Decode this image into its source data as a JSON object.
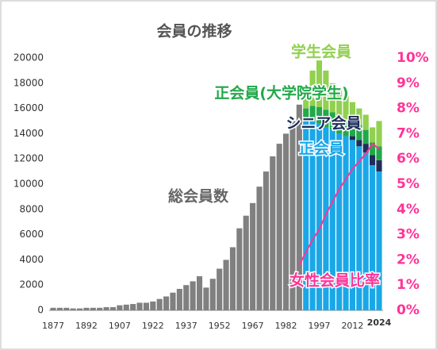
{
  "chart_data": {
    "type": "bar",
    "title": "会員の推移",
    "x": [
      1877,
      1880,
      1883,
      1886,
      1889,
      1892,
      1895,
      1898,
      1901,
      1904,
      1907,
      1910,
      1913,
      1916,
      1919,
      1922,
      1925,
      1928,
      1931,
      1934,
      1937,
      1940,
      1943,
      1946,
      1949,
      1952,
      1955,
      1958,
      1961,
      1964,
      1967,
      1970,
      1973,
      1976,
      1979,
      1982,
      1985,
      1988,
      1991,
      1994,
      1997,
      2000,
      2003,
      2006,
      2009,
      2012,
      2015,
      2018,
      2021,
      2024
    ],
    "series": [
      {
        "name": "総会員数",
        "color": "#808080",
        "values": [
          200,
          200,
          200,
          150,
          150,
          200,
          200,
          200,
          250,
          250,
          400,
          450,
          500,
          600,
          600,
          700,
          900,
          1100,
          1400,
          1700,
          2000,
          2300,
          2700,
          1800,
          2500,
          3300,
          4000,
          5000,
          6500,
          7500,
          8500,
          9800,
          11000,
          12200,
          13200,
          14000,
          15000,
          16300,
          null,
          null,
          null,
          null,
          null,
          null,
          null,
          null,
          null,
          null,
          null,
          null
        ]
      },
      {
        "name": "正会員",
        "color": "#1aa7e8",
        "values": [
          null,
          null,
          null,
          null,
          null,
          null,
          null,
          null,
          null,
          null,
          null,
          null,
          null,
          null,
          null,
          null,
          null,
          null,
          null,
          null,
          null,
          null,
          null,
          null,
          null,
          null,
          null,
          null,
          null,
          null,
          null,
          null,
          null,
          null,
          null,
          null,
          null,
          null,
          15000,
          15000,
          14800,
          14500,
          14300,
          14000,
          13800,
          13500,
          13000,
          12500,
          11500,
          11000
        ]
      },
      {
        "name": "シニア会員",
        "color": "#1f2d5a",
        "values": [
          null,
          null,
          null,
          null,
          null,
          null,
          null,
          null,
          null,
          null,
          null,
          null,
          null,
          null,
          null,
          null,
          null,
          null,
          null,
          null,
          null,
          null,
          null,
          null,
          null,
          null,
          null,
          null,
          null,
          null,
          null,
          null,
          null,
          null,
          null,
          null,
          null,
          null,
          null,
          null,
          null,
          null,
          null,
          null,
          null,
          300,
          500,
          700,
          800,
          900
        ]
      },
      {
        "name": "正会員(大学院学生)",
        "color": "#22a84a",
        "values": [
          null,
          null,
          null,
          null,
          null,
          null,
          null,
          null,
          null,
          null,
          null,
          null,
          null,
          null,
          null,
          null,
          null,
          null,
          null,
          null,
          null,
          null,
          null,
          null,
          null,
          null,
          null,
          null,
          null,
          null,
          null,
          null,
          null,
          null,
          null,
          null,
          null,
          null,
          1000,
          1200,
          1300,
          1400,
          1400,
          1400,
          1300,
          1200,
          1200,
          1100,
          1000,
          1100
        ]
      },
      {
        "name": "学生会員",
        "color": "#92d050",
        "values": [
          null,
          null,
          null,
          null,
          null,
          null,
          null,
          null,
          null,
          null,
          null,
          null,
          null,
          null,
          null,
          null,
          null,
          null,
          null,
          null,
          null,
          null,
          null,
          null,
          null,
          null,
          null,
          null,
          null,
          null,
          null,
          null,
          null,
          null,
          null,
          null,
          null,
          null,
          1500,
          2800,
          3700,
          3100,
          2300,
          2100,
          1900,
          1500,
          1300,
          1200,
          1200,
          2000
        ]
      },
      {
        "name": "女性会員比率",
        "color": "#ff3399",
        "axis": "y2",
        "line": true,
        "values": [
          null,
          null,
          null,
          null,
          null,
          null,
          null,
          null,
          null,
          null,
          null,
          null,
          null,
          null,
          null,
          null,
          null,
          null,
          null,
          null,
          null,
          null,
          null,
          null,
          null,
          null,
          null,
          null,
          null,
          null,
          null,
          null,
          null,
          null,
          null,
          null,
          null,
          1.8,
          2.3,
          2.8,
          3.2,
          3.8,
          4.3,
          4.8,
          5.2,
          5.6,
          5.9,
          6.2,
          6.6,
          6.4
        ]
      }
    ],
    "xlim": [
      1877,
      2024
    ],
    "xticks": [
      1877,
      1892,
      1907,
      1922,
      1937,
      1952,
      1967,
      1982,
      1997,
      2012,
      2024
    ],
    "ylim": [
      0,
      20000
    ],
    "yticks": [
      0,
      2000,
      4000,
      6000,
      8000,
      10000,
      12000,
      14000,
      16000,
      18000,
      20000
    ],
    "y2lim": [
      0,
      10
    ],
    "y2ticks": [
      {
        "value": 0,
        "label": "0%"
      },
      {
        "value": 1,
        "label": "1%"
      },
      {
        "value": 2,
        "label": "2%"
      },
      {
        "value": 3,
        "label": "3%"
      },
      {
        "value": 4,
        "label": "4%"
      },
      {
        "value": 5,
        "label": "5%"
      },
      {
        "value": 6,
        "label": "6%"
      },
      {
        "value": 7,
        "label": "7%"
      },
      {
        "value": 8,
        "label": "8%"
      },
      {
        "value": 9,
        "label": "9%"
      },
      {
        "value": 10,
        "label": "10%"
      }
    ]
  }
}
